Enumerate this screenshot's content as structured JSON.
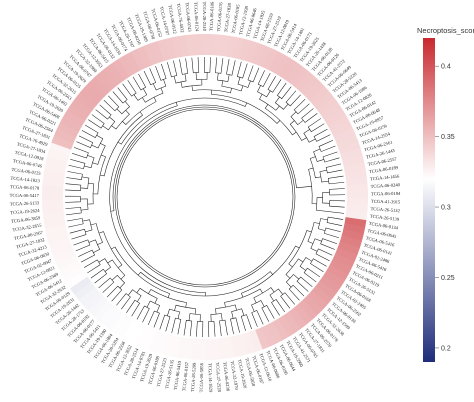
{
  "chart_data": {
    "type": "circular-heatmap-dendrogram",
    "legend": {
      "title": "Necroptosis_score",
      "ticks": [
        "0.4",
        "0.35",
        "0.3",
        "0.25",
        "0.2"
      ],
      "tick_values": [
        0.4,
        0.35,
        0.3,
        0.25,
        0.2
      ],
      "range": [
        0.19,
        0.42
      ],
      "colors": {
        "low": "#1f2d7a",
        "mid": "#ffffff",
        "high": "#c8292e"
      },
      "midpoint": 0.3,
      "placement": "right"
    },
    "samples": [
      {
        "label": "TCGA-06-0134",
        "score": 0.382
      },
      {
        "label": "TCGA-06-0645",
        "score": 0.378
      },
      {
        "label": "TCGA-06-5416",
        "score": 0.375
      },
      {
        "label": "TCGA-06-0141",
        "score": 0.372
      },
      {
        "label": "TCGA-02-2486",
        "score": 0.369
      },
      {
        "label": "TCGA-06-5418",
        "score": 0.366
      },
      {
        "label": "TCGA-06-0211",
        "score": 0.364
      },
      {
        "label": "TCGA-06-0219",
        "score": 0.362
      },
      {
        "label": "TCGA-26-5132",
        "score": 0.36
      },
      {
        "label": "TCGA-06-0168",
        "score": 0.358
      },
      {
        "label": "TCGA-02-2485",
        "score": 0.356
      },
      {
        "label": "TCGA-06-2562",
        "score": 0.354
      },
      {
        "label": "TCGA-06-0130",
        "score": 0.352
      },
      {
        "label": "TCGA-12-1599",
        "score": 0.35
      },
      {
        "label": "TCGA-32-2638",
        "score": 0.348
      },
      {
        "label": "TCGA-06-0178",
        "score": 0.346
      },
      {
        "label": "TCGA-06-2570",
        "score": 0.344
      },
      {
        "label": "TCGA-27-1831",
        "score": 0.342
      },
      {
        "label": "TCGA-06-0745",
        "score": 0.34
      },
      {
        "label": "TCGA-41-2571",
        "score": 0.338
      },
      {
        "label": "TCGA-19-5960",
        "score": 0.336
      },
      {
        "label": "TCGA-06-0644",
        "score": 0.334
      },
      {
        "label": "TCGA-06-0190",
        "score": 0.333
      },
      {
        "label": "TCGA-06-0686",
        "score": 0.332
      },
      {
        "label": "TCGA-12-0616",
        "score": 0.31
      },
      {
        "label": "TCGA-06-0187",
        "score": 0.309
      },
      {
        "label": "TCGA-06-5858",
        "score": 0.308
      },
      {
        "label": "TCGA-19-2620",
        "score": 0.308
      },
      {
        "label": "TCGA-32-1970",
        "score": 0.307
      },
      {
        "label": "TCGA-06-0238",
        "score": 0.307
      },
      {
        "label": "TCGA-27-2528",
        "score": 0.306
      },
      {
        "label": "TCGA-14-1829",
        "score": 0.306
      },
      {
        "label": "TCGA-06-5856",
        "score": 0.305
      },
      {
        "label": "TCGA-28-5209",
        "score": 0.305
      },
      {
        "label": "TCGA-06-0157",
        "score": 0.304
      },
      {
        "label": "TCGA-06-5410",
        "score": 0.304
      },
      {
        "label": "TCGA-26-5135",
        "score": 0.303
      },
      {
        "label": "TCGA-27-2523",
        "score": 0.303
      },
      {
        "label": "TCGA-06-0188",
        "score": 0.302
      },
      {
        "label": "TCGA-19-2629",
        "score": 0.302
      },
      {
        "label": "TCGA-14-0781",
        "score": 0.301
      },
      {
        "label": "TCGA-28-2514",
        "score": 0.301
      },
      {
        "label": "TCGA-12-3652",
        "score": 0.3
      },
      {
        "label": "TCGA-06-2558",
        "score": 0.3
      },
      {
        "label": "TCGA-28-5204",
        "score": 0.299
      },
      {
        "label": "TCGA-06-1804",
        "score": 0.299
      },
      {
        "label": "TCGA-19-1390",
        "score": 0.298
      },
      {
        "label": "TCGA-06-5411",
        "score": 0.298
      },
      {
        "label": "TCGA-06-0177",
        "score": 0.297
      },
      {
        "label": "TCGA-06-0192",
        "score": 0.296
      },
      {
        "label": "TCGA-28-1753",
        "score": 0.295
      },
      {
        "label": "TCGA-26-1442",
        "score": 0.294
      },
      {
        "label": "TCGA-19-2631",
        "score": 0.292
      },
      {
        "label": "TCGA-06-0129",
        "score": 0.29
      },
      {
        "label": "TCGA-32-2632",
        "score": 0.301
      },
      {
        "label": "TCGA-06-5412",
        "score": 0.302
      },
      {
        "label": "TCGA-06-2569",
        "score": 0.303
      },
      {
        "label": "TCGA-12-0821",
        "score": 0.304
      },
      {
        "label": "TCGA-02-0047",
        "score": 0.305
      },
      {
        "label": "TCGA-06-0650",
        "score": 0.306
      },
      {
        "label": "TCGA-32-4213",
        "score": 0.306
      },
      {
        "label": "TCGA-27-1832",
        "score": 0.307
      },
      {
        "label": "TCGA-06-2567",
        "score": 0.307
      },
      {
        "label": "TCGA-32-2615",
        "score": 0.308
      },
      {
        "label": "TCGA-06-3859",
        "score": 0.308
      },
      {
        "label": "TCGA-19-2624",
        "score": 0.309
      },
      {
        "label": "TCGA-26-5133",
        "score": 0.309
      },
      {
        "label": "TCGA-06-5417",
        "score": 0.31
      },
      {
        "label": "TCGA-06-0178",
        "score": 0.31
      },
      {
        "label": "TCGA-14-1823",
        "score": 0.309
      },
      {
        "label": "TCGA-06-0125",
        "score": 0.309
      },
      {
        "label": "TCGA-06-0746",
        "score": 0.308
      },
      {
        "label": "TCGA-12-0818",
        "score": 0.308
      },
      {
        "label": "TCGA-27-1834",
        "score": 0.307
      },
      {
        "label": "TCGA-76-4929",
        "score": 0.306
      },
      {
        "label": "TCGA-27-1831",
        "score": 0.336
      },
      {
        "label": "TCGA-06-2564",
        "score": 0.338
      },
      {
        "label": "TCGA-06-0221",
        "score": 0.34
      },
      {
        "label": "TCGA-06-5408",
        "score": 0.341
      },
      {
        "label": "TCGA-19-2620",
        "score": 0.342
      },
      {
        "label": "TCGA-06-1402",
        "score": 0.344
      },
      {
        "label": "TCGA-06-2563",
        "score": 0.345
      },
      {
        "label": "TCGA-32-2615",
        "score": 0.346
      },
      {
        "label": "TCGA-06-0125",
        "score": 0.347
      },
      {
        "label": "TCGA-19-2629",
        "score": 0.347
      },
      {
        "label": "TCGA-06-0747",
        "score": 0.346
      },
      {
        "label": "TCGA-32-1980",
        "score": 0.345
      },
      {
        "label": "TCGA-12-3653",
        "score": 0.344
      },
      {
        "label": "TCGA-06-5415",
        "score": 0.343
      },
      {
        "label": "TCGA-06-0132",
        "score": 0.342
      },
      {
        "label": "TCGA-14-1034",
        "score": 0.34
      },
      {
        "label": "TCGA-06-0174",
        "score": 0.339
      },
      {
        "label": "TCGA-28-1747",
        "score": 0.337
      },
      {
        "label": "TCGA-06-0210",
        "score": 0.336
      },
      {
        "label": "TCGA-19-1389",
        "score": 0.334
      },
      {
        "label": "TCGA-06-0750",
        "score": 0.333
      },
      {
        "label": "TCGA-06-0152",
        "score": 0.331
      },
      {
        "label": "TCGA-14-0787",
        "score": 0.33
      },
      {
        "label": "TCGA-06-0122",
        "score": 0.329
      },
      {
        "label": "TCGA-76-4932",
        "score": 0.328
      },
      {
        "label": "TCGA-06-0743",
        "score": 0.327
      },
      {
        "label": "TCGA-06-0124",
        "score": 0.327
      },
      {
        "label": "TCGA-28-2510",
        "score": 0.326
      },
      {
        "label": "TCGA-06-0186",
        "score": 0.326
      },
      {
        "label": "TCGA-06-0176",
        "score": 0.325
      },
      {
        "label": "TCGA-27-1838",
        "score": 0.325
      },
      {
        "label": "TCGA-06-0185",
        "score": 0.326
      },
      {
        "label": "TCGA-12-1598",
        "score": 0.327
      },
      {
        "label": "TCGA-06-0646",
        "score": 0.328
      },
      {
        "label": "TCGA-14-1825",
        "score": 0.329
      },
      {
        "label": "TCGA-06-2559",
        "score": 0.33
      },
      {
        "label": "TCGA-27-2519",
        "score": 0.331
      },
      {
        "label": "TCGA-12-0819",
        "score": 0.332
      },
      {
        "label": "TCGA-06-5414",
        "score": 0.333
      },
      {
        "label": "TCGA-14-1401",
        "score": 0.334
      },
      {
        "label": "TCGA-06-0173",
        "score": 0.335
      },
      {
        "label": "TCGA-19-2625",
        "score": 0.334
      },
      {
        "label": "TCGA-26-1438",
        "score": 0.333
      },
      {
        "label": "TCGA-06-0128",
        "score": 0.332
      },
      {
        "label": "TCGA-06-0126",
        "score": 0.331
      },
      {
        "label": "TCGA-41-2572",
        "score": 0.33
      },
      {
        "label": "TCGA-06-0649",
        "score": 0.329
      },
      {
        "label": "TCGA-28-5220",
        "score": 0.328
      },
      {
        "label": "TCGA-06-5413",
        "score": 0.327
      },
      {
        "label": "TCGA-06-1086",
        "score": 0.326
      },
      {
        "label": "TCGA-12-0820",
        "score": 0.325
      },
      {
        "label": "TCGA-06-0142",
        "score": 0.324
      },
      {
        "label": "TCGA-06-0648",
        "score": 0.323
      },
      {
        "label": "TCGA-19-0957",
        "score": 0.322
      },
      {
        "label": "TCGA-06-0156",
        "score": 0.321
      },
      {
        "label": "TCGA-14-2554",
        "score": 0.32
      },
      {
        "label": "TCGA-06-2561",
        "score": 0.319
      },
      {
        "label": "TCGA-26-1443",
        "score": 0.318
      },
      {
        "label": "TCGA-06-2557",
        "score": 0.317
      },
      {
        "label": "TCGA-06-0189",
        "score": 0.316
      },
      {
        "label": "TCGA-14-1456",
        "score": 0.315
      },
      {
        "label": "TCGA-06-0240",
        "score": 0.314
      },
      {
        "label": "TCGA-06-0184",
        "score": 0.313
      },
      {
        "label": "TCGA-41-3915",
        "score": 0.312
      },
      {
        "label": "TCGA-26-5132",
        "score": 0.311
      },
      {
        "label": "TCGA-26-5139",
        "score": 0.31
      }
    ]
  }
}
